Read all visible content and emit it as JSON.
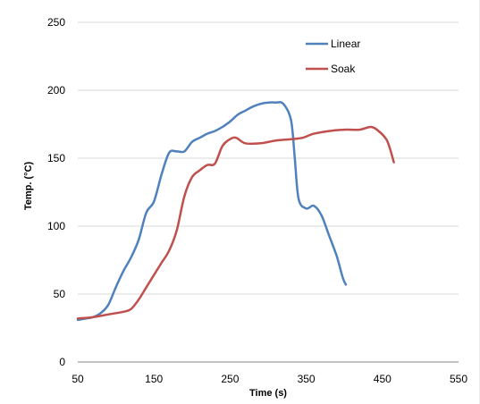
{
  "chart_data": {
    "type": "line",
    "title": "",
    "xlabel": "Time (s)",
    "ylabel": "Temp. (°C)",
    "xlim": [
      50,
      550
    ],
    "ylim": [
      0,
      250
    ],
    "x_ticks": [
      50,
      150,
      250,
      350,
      450,
      550
    ],
    "y_ticks": [
      0,
      50,
      100,
      150,
      200,
      250
    ],
    "grid": "horizontal",
    "legend_position": "top-right",
    "series": [
      {
        "name": "Linear",
        "color": "#4F81BD",
        "points": [
          [
            50,
            31
          ],
          [
            60,
            32
          ],
          [
            70,
            33
          ],
          [
            80,
            36
          ],
          [
            90,
            42
          ],
          [
            100,
            55
          ],
          [
            110,
            67
          ],
          [
            120,
            77
          ],
          [
            130,
            90
          ],
          [
            140,
            110
          ],
          [
            150,
            118
          ],
          [
            160,
            138
          ],
          [
            170,
            154
          ],
          [
            180,
            155
          ],
          [
            190,
            155
          ],
          [
            200,
            162
          ],
          [
            210,
            165
          ],
          [
            220,
            168
          ],
          [
            230,
            170
          ],
          [
            240,
            173
          ],
          [
            250,
            177
          ],
          [
            260,
            182
          ],
          [
            270,
            185
          ],
          [
            280,
            188
          ],
          [
            290,
            190
          ],
          [
            300,
            191
          ],
          [
            310,
            191
          ],
          [
            320,
            190
          ],
          [
            330,
            178
          ],
          [
            335,
            150
          ],
          [
            340,
            120
          ],
          [
            350,
            113
          ],
          [
            360,
            115
          ],
          [
            370,
            108
          ],
          [
            380,
            93
          ],
          [
            390,
            78
          ],
          [
            398,
            62
          ],
          [
            402,
            57
          ]
        ]
      },
      {
        "name": "Soak",
        "color": "#C0504D",
        "points": [
          [
            50,
            32
          ],
          [
            70,
            33
          ],
          [
            90,
            35
          ],
          [
            110,
            37
          ],
          [
            120,
            39
          ],
          [
            130,
            46
          ],
          [
            140,
            55
          ],
          [
            150,
            64
          ],
          [
            160,
            73
          ],
          [
            170,
            82
          ],
          [
            180,
            97
          ],
          [
            190,
            122
          ],
          [
            200,
            136
          ],
          [
            210,
            141
          ],
          [
            220,
            145
          ],
          [
            230,
            146
          ],
          [
            240,
            159
          ],
          [
            250,
            164
          ],
          [
            258,
            165
          ],
          [
            270,
            161
          ],
          [
            290,
            161
          ],
          [
            310,
            163
          ],
          [
            330,
            164
          ],
          [
            345,
            165
          ],
          [
            360,
            168
          ],
          [
            380,
            170
          ],
          [
            400,
            171
          ],
          [
            420,
            171
          ],
          [
            435,
            173
          ],
          [
            445,
            170
          ],
          [
            455,
            164
          ],
          [
            460,
            157
          ],
          [
            465,
            147
          ]
        ]
      }
    ]
  }
}
